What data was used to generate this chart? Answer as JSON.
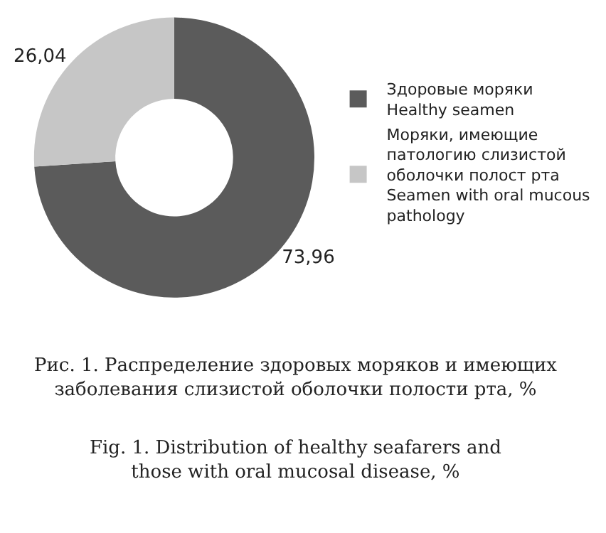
{
  "chart_data": {
    "type": "donut",
    "categories": [
      "Здоровые моряки\nHealthy seamen",
      "Моряки, имеющие патологию слизистой оболочки полост рта\nSeamen with oral mucous pathology"
    ],
    "values": [
      73.96,
      26.04
    ],
    "colors": [
      "#5b5b5b",
      "#c6c6c6"
    ],
    "value_labels": [
      "73,96",
      "26,04"
    ],
    "legend": "right",
    "annotations": [
      "Рис. 1. Распределение здоровых моряков и имеющих заболевания слизистой оболочки полости рта, %",
      "Fig. 1. Distribution of healthy seafarers and those with oral mucosal disease, %"
    ]
  }
}
